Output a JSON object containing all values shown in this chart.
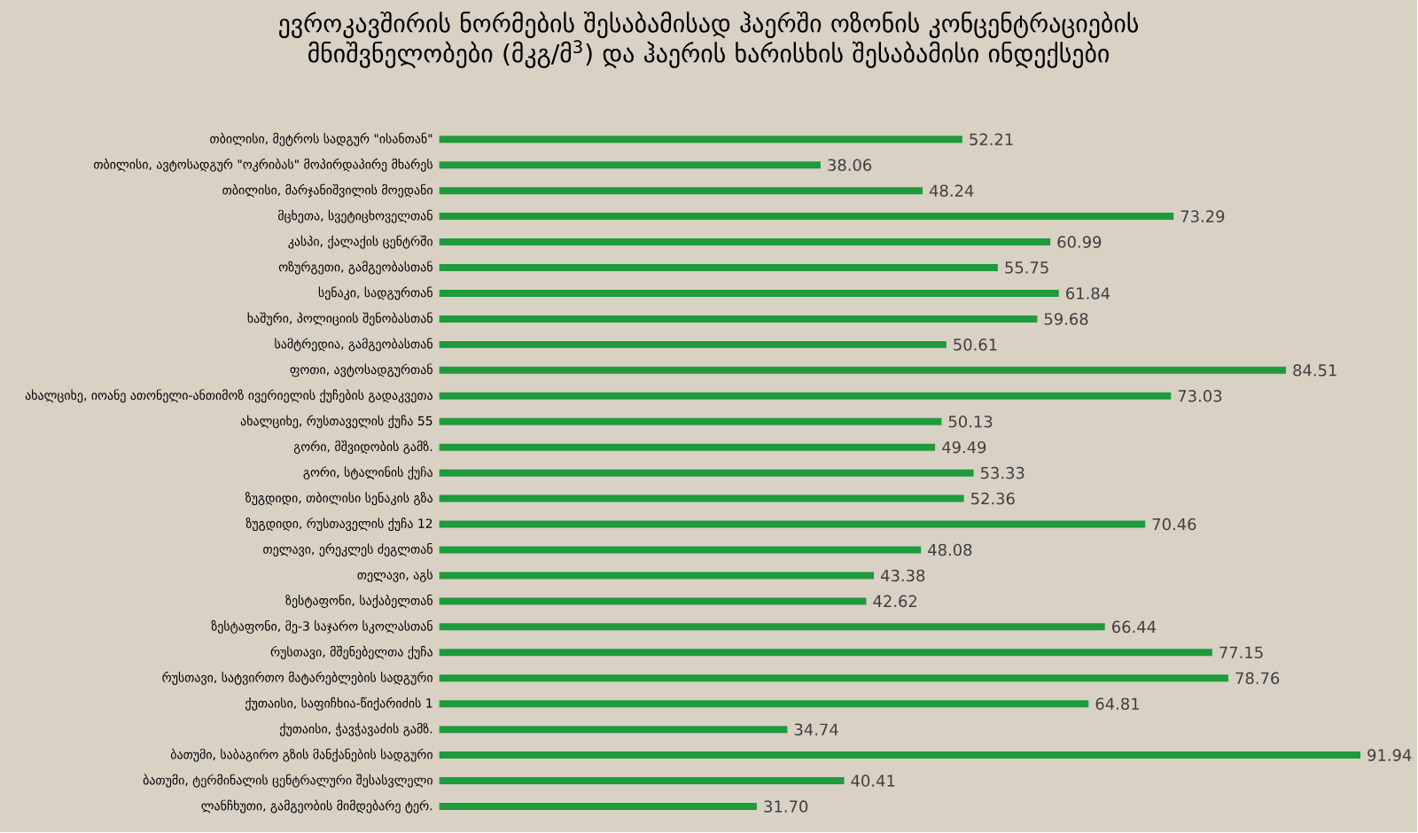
{
  "chart_data": {
    "type": "bar",
    "orientation": "horizontal",
    "title": "ევროკავშირის ნორმების შესაბამისად ჰაერში ოზონის კონცენტრაციების მნიშვნელობები (მკგ/მ$^{3}$) და ჰაერის ხარისხის შესაბამისი ინდექსები",
    "categories": [
      "თბილისი, მეტროს სადგურ \"ისანთან\"",
      "თბილისი, ავტოსადგურ \"ოკრიბას\" მოპირდაპირე მხარეს",
      "თბილისი, მარჯანიშვილის მოედანი",
      "მცხეთა, სვეტიცხოველთან",
      "კასპი, ქალაქის ცენტრში",
      "ოზურგეთი, გამგეობასთან",
      "სენაკი, სადგურთან",
      "ხაშური, პოლიციის შენობასთან",
      "სამტრედია, გამგეობასთან",
      "ფოთი, ავტოსადგურთან",
      "ახალციხე, იოანე ათონელი-ანთიმოზ ივერიელის ქუჩების გადაკვეთა",
      "ახალციხე, რუსთაველის ქუჩა 55",
      "გორი, მშვიდობის გამზ.",
      "გორი, სტალინის ქუჩა",
      "ზუგდიდი, თბილისი სენაკის გზა",
      "ზუგდიდი, რუსთაველის ქუჩა 12",
      "თელავი, ერეკლეს ძეგლთან",
      "თელავი, აგს",
      "ზესტაფონი, საქაბელთან",
      "ზესტაფონი, მე-3 საჯარო სკოლასთან",
      "რუსთავი, მშენებელთა ქუჩა",
      "რუსთავი, სატვირთო მატარებლების სადგური",
      "ქუთაისი, საფიჩხია-წიქარიძის 1",
      "ქუთაისი, ჭავჭავაძის გამზ.",
      "ბათუმი, საბაგირო გზის მანქანების სადგური",
      "ბათუმი, ტერმინალის ცენტრალური შესასვლელი",
      "ლანჩხუთი, გამგეობის მიმდებარე ტერ."
    ],
    "values": [
      52.21,
      38.06,
      48.24,
      73.29,
      60.99,
      55.75,
      61.84,
      59.68,
      50.61,
      84.51,
      73.03,
      50.13,
      49.49,
      53.33,
      52.36,
      70.46,
      48.08,
      43.38,
      42.62,
      66.44,
      77.15,
      78.76,
      64.81,
      34.74,
      91.94,
      40.41,
      31.7
    ],
    "value_labels": [
      "52.21",
      "38.06",
      "48.24",
      "73.29",
      "60.99",
      "55.75",
      "61.84",
      "59.68",
      "50.61",
      "84.51",
      "73.03",
      "50.13",
      "49.49",
      "53.33",
      "52.36",
      "70.46",
      "48.08",
      "43.38",
      "42.62",
      "66.44",
      "77.15",
      "78.76",
      "64.81",
      "34.74",
      "91.94",
      "40.41",
      "31.70"
    ],
    "color": "#1f9a3c"
  }
}
